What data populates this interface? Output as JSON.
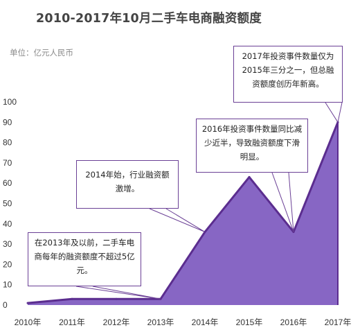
{
  "title": "2010-2017年10月二手车电商融资额度",
  "unit_label": "单位：亿元人民币",
  "colors": {
    "line": "#5b2d8f",
    "fill": "#8766c4",
    "callout_border": "#6a3f95",
    "axis_text": "#333333"
  },
  "chart_data": {
    "type": "area",
    "title": "2010-2017年10月二手车电商融资额度",
    "ylabel": "单位：亿元人民币",
    "xlabel": "",
    "ylim": [
      0,
      100
    ],
    "yticks": [
      0,
      10,
      20,
      30,
      40,
      50,
      60,
      70,
      80,
      90,
      100
    ],
    "categories": [
      "2010年",
      "2011年",
      "2012年",
      "2013年",
      "2014年",
      "2015年",
      "2016年",
      "2017年"
    ],
    "series": [
      {
        "values": [
          1,
          3,
          3,
          3,
          36,
          63,
          36,
          90
        ]
      }
    ],
    "grid": false,
    "annotations": [
      "在2013年及以前，二手车电商每年的融资额度不超过5亿元。",
      "2014年始，行业融资额激增。",
      "2016年投资事件数量同比减少近半，导致融资额度下滑明显。",
      "2017年投资事件数量仅为2015年三分之一，但总融资额度创历年新高。"
    ]
  }
}
